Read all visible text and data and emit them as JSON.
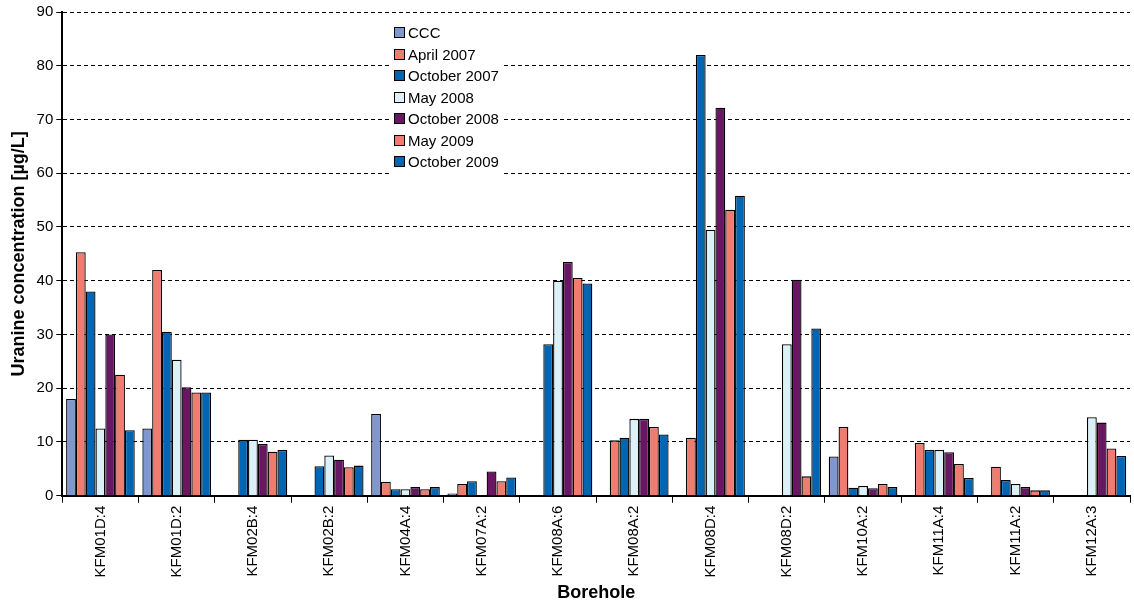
{
  "chart_data": {
    "type": "bar",
    "xlabel": "Borehole",
    "ylabel": "Uranine concentration [µg/L]",
    "categories": [
      "KFM01D:4",
      "KFM01D:2",
      "KFM02B:4",
      "KFM02B:2",
      "KFM04A:4",
      "KFM07A:2",
      "KFM08A:6",
      "KFM08A:2",
      "KFM08D:4",
      "KFM08D:2",
      "KFM10A:2",
      "KFM11A:4",
      "KFM11A:2",
      "KFM12A:3"
    ],
    "series": [
      {
        "name": "CCC",
        "color": "#7f96cf",
        "values": [
          18,
          12.5,
          null,
          null,
          15.2,
          0.4,
          null,
          null,
          null,
          null,
          7.3,
          null,
          null,
          null
        ]
      },
      {
        "name": "April 2007",
        "color": "#f07c70",
        "values": [
          45.3,
          42,
          null,
          null,
          2.6,
          2.2,
          null,
          10.3,
          10.8,
          null,
          12.8,
          9.8,
          5.4,
          null
        ]
      },
      {
        "name": "October 2007",
        "color": "#0066b3",
        "values": [
          38,
          30.5,
          10.4,
          5.5,
          1.2,
          2.7,
          28.2,
          10.8,
          82,
          null,
          1.5,
          8.5,
          2.9,
          null
        ]
      },
      {
        "name": "May 2008",
        "color": "#dcf0f8",
        "values": [
          12.5,
          25.3,
          10.4,
          7.5,
          1.2,
          null,
          40,
          14.3,
          49.5,
          28.2,
          1.8,
          8.5,
          2.2,
          14.6
        ]
      },
      {
        "name": "October 2008",
        "color": "#6a1763",
        "values": [
          30,
          20.2,
          9.6,
          6.7,
          1.6,
          4.5,
          43.5,
          14.3,
          72.2,
          40.2,
          1.4,
          8.1,
          1.6,
          13.6
        ]
      },
      {
        "name": "May 2009",
        "color": "#f07c70",
        "values": [
          22.5,
          19.2,
          8.2,
          5.3,
          1.2,
          2.7,
          40.5,
          12.8,
          53.2,
          3.6,
          2.2,
          5.9,
          1,
          8.8
        ]
      },
      {
        "name": "October 2009",
        "color": "#0066b3",
        "values": [
          12.2,
          19.2,
          8.5,
          5.6,
          1.6,
          3.4,
          39.5,
          11.4,
          55.8,
          31.1,
          1.6,
          3.3,
          1,
          7.4
        ]
      }
    ],
    "ylim": [
      0,
      90
    ],
    "yticks": [
      0,
      10,
      20,
      30,
      40,
      50,
      60,
      70,
      80,
      90
    ],
    "grid": "y",
    "legend": "top left"
  }
}
